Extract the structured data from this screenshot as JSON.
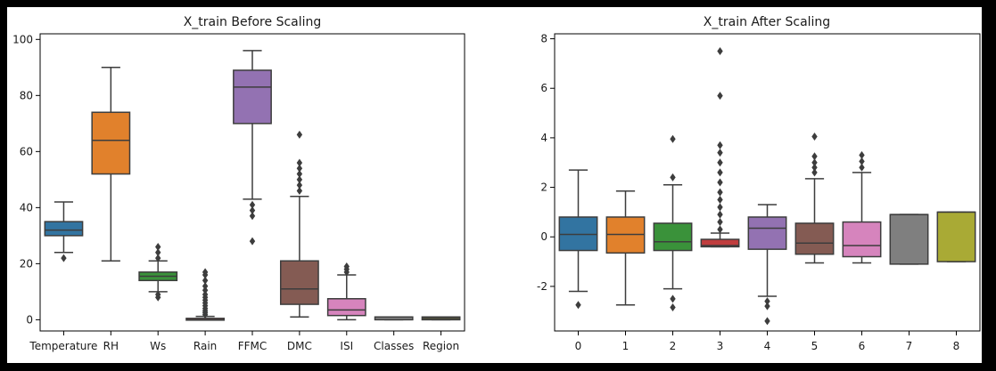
{
  "chart_data": [
    {
      "type": "box",
      "title": "X_train Before Scaling",
      "xlabel": "",
      "ylabel": "",
      "ylim": [
        -4,
        102
      ],
      "yticks": [
        0,
        20,
        40,
        60,
        80,
        100
      ],
      "categories": [
        "Temperature",
        "RH",
        "Ws",
        "Rain",
        "FFMC",
        "DMC",
        "ISI",
        "Classes",
        "Region"
      ],
      "boxes": [
        {
          "category": "Temperature",
          "color": "#3274a1",
          "whisker_low": 24,
          "q1": 30,
          "median": 32,
          "q3": 35,
          "whisker_high": 42,
          "outliers": [
            22
          ]
        },
        {
          "category": "RH",
          "color": "#e1812c",
          "whisker_low": 21,
          "q1": 52,
          "median": 64,
          "q3": 74,
          "whisker_high": 90,
          "outliers": []
        },
        {
          "category": "Ws",
          "color": "#3a923a",
          "whisker_low": 10,
          "q1": 14,
          "median": 15.5,
          "q3": 17,
          "whisker_high": 21,
          "outliers": [
            8,
            9,
            22,
            24,
            26
          ]
        },
        {
          "category": "Rain",
          "color": "#c03d3e",
          "whisker_low": 0,
          "q1": 0,
          "median": 0,
          "q3": 0.5,
          "whisker_high": 1.2,
          "outliers": [
            1.8,
            2.5,
            3.2,
            4,
            5,
            6,
            7,
            8,
            9,
            10.5,
            12,
            14,
            16,
            17
          ]
        },
        {
          "category": "FFMC",
          "color": "#9372b2",
          "whisker_low": 43,
          "q1": 70,
          "median": 83,
          "q3": 89,
          "whisker_high": 96,
          "outliers": [
            28,
            37,
            39,
            41
          ]
        },
        {
          "category": "DMC",
          "color": "#845b53",
          "whisker_low": 1,
          "q1": 5.5,
          "median": 11,
          "q3": 21,
          "whisker_high": 44,
          "outliers": [
            46,
            48,
            50,
            52,
            54,
            56,
            66
          ]
        },
        {
          "category": "ISI",
          "color": "#d684bd",
          "whisker_low": 0,
          "q1": 1.5,
          "median": 3.5,
          "q3": 7.5,
          "whisker_high": 16,
          "outliers": [
            17,
            18,
            19
          ]
        },
        {
          "category": "Classes",
          "color": "#7f7f7f",
          "whisker_low": 0,
          "q1": 0,
          "median": 1,
          "q3": 1,
          "whisker_high": 1,
          "outliers": []
        },
        {
          "category": "Region",
          "color": "#a9aa35",
          "whisker_low": 0,
          "q1": 0,
          "median": 0.5,
          "q3": 1,
          "whisker_high": 1,
          "outliers": []
        }
      ]
    },
    {
      "type": "box",
      "title": "X_train After Scaling",
      "xlabel": "",
      "ylabel": "",
      "ylim": [
        -3.8,
        8.2
      ],
      "yticks": [
        -2,
        0,
        2,
        4,
        6,
        8
      ],
      "categories": [
        "0",
        "1",
        "2",
        "3",
        "4",
        "5",
        "6",
        "7",
        "8"
      ],
      "boxes": [
        {
          "category": "0",
          "color": "#3274a1",
          "whisker_low": -2.2,
          "q1": -0.55,
          "median": 0.1,
          "q3": 0.8,
          "whisker_high": 2.7,
          "outliers": [
            -2.75
          ]
        },
        {
          "category": "1",
          "color": "#e1812c",
          "whisker_low": -2.75,
          "q1": -0.65,
          "median": 0.1,
          "q3": 0.8,
          "whisker_high": 1.85,
          "outliers": []
        },
        {
          "category": "2",
          "color": "#3a923a",
          "whisker_low": -2.1,
          "q1": -0.55,
          "median": -0.2,
          "q3": 0.55,
          "whisker_high": 2.1,
          "outliers": [
            -2.5,
            -2.85,
            2.4,
            3.95
          ]
        },
        {
          "category": "3",
          "color": "#c03d3e",
          "whisker_low": -0.4,
          "q1": -0.4,
          "median": -0.35,
          "q3": -0.1,
          "whisker_high": 0.15,
          "outliers": [
            0.3,
            0.6,
            0.9,
            1.2,
            1.5,
            1.8,
            2.2,
            2.6,
            3.0,
            3.4,
            3.7,
            5.7,
            7.5
          ]
        },
        {
          "category": "4",
          "color": "#9372b2",
          "whisker_low": -2.4,
          "q1": -0.5,
          "median": 0.35,
          "q3": 0.8,
          "whisker_high": 1.3,
          "outliers": [
            -2.6,
            -2.8,
            -3.4
          ]
        },
        {
          "category": "5",
          "color": "#845b53",
          "whisker_low": -1.05,
          "q1": -0.7,
          "median": -0.25,
          "q3": 0.55,
          "whisker_high": 2.35,
          "outliers": [
            2.6,
            2.8,
            3.0,
            3.25,
            4.05
          ]
        },
        {
          "category": "6",
          "color": "#d684bd",
          "whisker_low": -1.05,
          "q1": -0.8,
          "median": -0.35,
          "q3": 0.6,
          "whisker_high": 2.6,
          "outliers": [
            2.8,
            3.05,
            3.3
          ]
        },
        {
          "category": "7",
          "color": "#7f7f7f",
          "whisker_low": -1.1,
          "q1": -1.1,
          "median": 0.9,
          "q3": 0.9,
          "whisker_high": 0.9,
          "outliers": []
        },
        {
          "category": "8",
          "color": "#a9aa35",
          "whisker_low": -1.0,
          "q1": -1.0,
          "median": 1.0,
          "q3": 1.0,
          "whisker_high": 1.0,
          "outliers": []
        }
      ]
    }
  ]
}
